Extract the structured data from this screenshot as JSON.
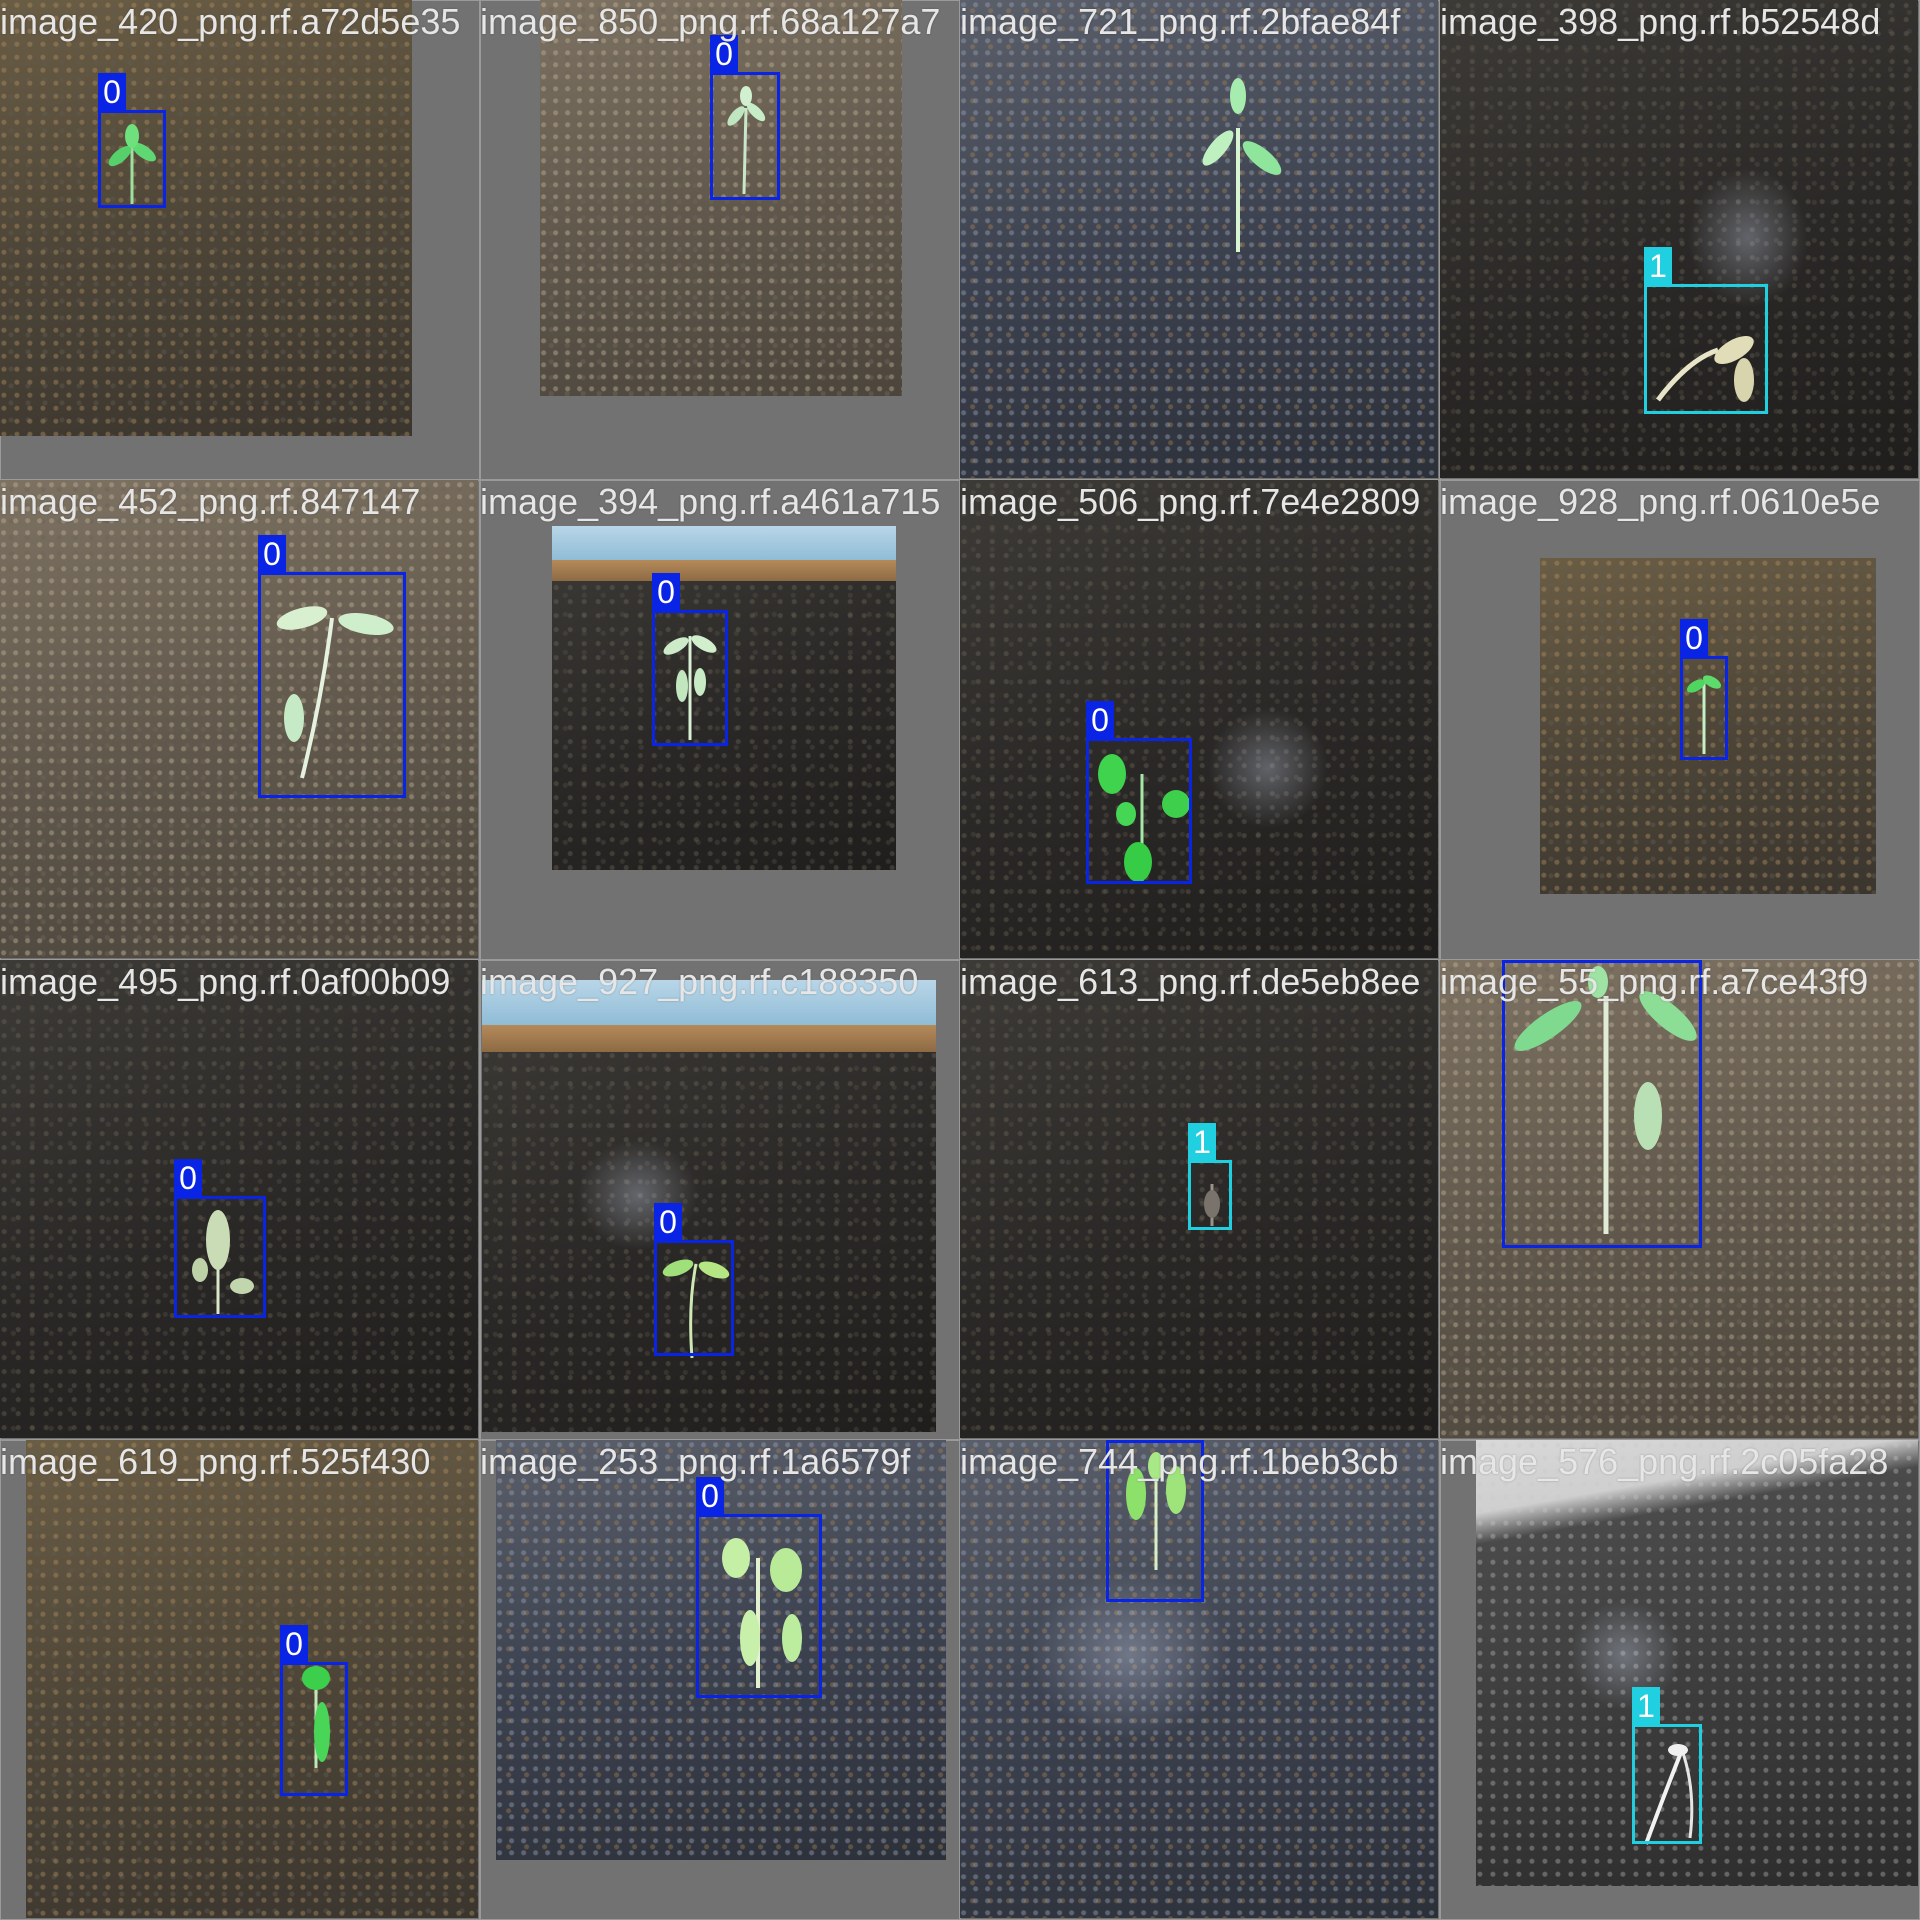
{
  "mosaic": {
    "tiles": [
      {
        "filename": "image_420_png.rf.a72d5e35",
        "boxes": [
          {
            "class_label": "0"
          }
        ]
      },
      {
        "filename": "image_850_png.rf.68a127a7",
        "boxes": [
          {
            "class_label": "0"
          }
        ]
      },
      {
        "filename": "image_721_png.rf.2bfae84f",
        "boxes": []
      },
      {
        "filename": "image_398_png.rf.b52548d",
        "boxes": [
          {
            "class_label": "1"
          }
        ]
      },
      {
        "filename": "image_452_png.rf.847147",
        "boxes": [
          {
            "class_label": "0"
          }
        ]
      },
      {
        "filename": "image_394_png.rf.a461a715",
        "boxes": [
          {
            "class_label": "0"
          }
        ]
      },
      {
        "filename": "image_506_png.rf.7e4e2809",
        "boxes": [
          {
            "class_label": "0"
          }
        ]
      },
      {
        "filename": "image_928_png.rf.0610e5e",
        "boxes": [
          {
            "class_label": "0"
          }
        ]
      },
      {
        "filename": "image_495_png.rf.0af00b09",
        "boxes": [
          {
            "class_label": "0"
          }
        ]
      },
      {
        "filename": "image_927_png.rf.c188350",
        "boxes": [
          {
            "class_label": "0"
          }
        ]
      },
      {
        "filename": "image_613_png.rf.de5eb8ee",
        "boxes": [
          {
            "class_label": "1"
          }
        ]
      },
      {
        "filename": "image_55_png.rf.a7ce43f9",
        "boxes": [
          {
            "class_label": "0"
          }
        ]
      },
      {
        "filename": "image_619_png.rf.525f430",
        "boxes": [
          {
            "class_label": "0"
          }
        ]
      },
      {
        "filename": "image_253_png.rf.1a6579f",
        "boxes": [
          {
            "class_label": "0"
          }
        ]
      },
      {
        "filename": "image_744_png.rf.1beb3cb",
        "boxes": [
          {
            "class_label": "0"
          }
        ]
      },
      {
        "filename": "image_576_png.rf.2c05fa28",
        "boxes": [
          {
            "class_label": "1"
          }
        ]
      }
    ]
  },
  "colors": {
    "class_0": "#0a24e6",
    "class_1": "#20cfe0",
    "canvas_gray": "#727272"
  }
}
